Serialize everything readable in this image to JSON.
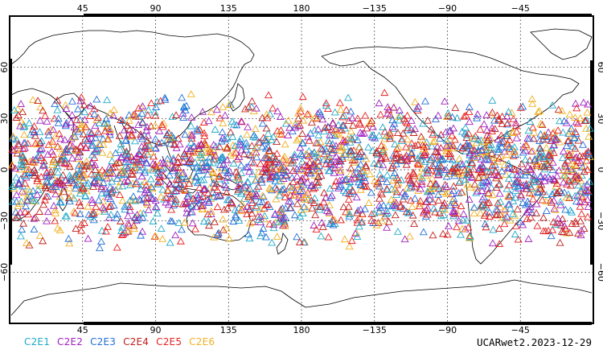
{
  "map": {
    "lon_ticks_top": [
      "45",
      "90",
      "135",
      "180",
      "−135",
      "−90",
      "−45"
    ],
    "lon_ticks_bottom": [
      "45",
      "90",
      "135",
      "180",
      "−135",
      "−90",
      "−45"
    ],
    "lat_ticks_left": [
      "60",
      "30",
      "0",
      "−30",
      "−60"
    ],
    "lat_ticks_right": [
      "60",
      "30",
      "0",
      "−30",
      "−60"
    ],
    "gridlines": true,
    "projection": "equirectangular, Pacific-centered",
    "marker": "open triangle",
    "observation_band_latitude": [
      -45,
      45
    ]
  },
  "legend": {
    "items": [
      {
        "label": "C2E1",
        "color": "#20a9c9"
      },
      {
        "label": "C2E2",
        "color": "#a020c0"
      },
      {
        "label": "C2E3",
        "color": "#1f6fd6"
      },
      {
        "label": "C2E4",
        "color": "#c0201e"
      },
      {
        "label": "C2E5",
        "color": "#e81f1f"
      },
      {
        "label": "C2E6",
        "color": "#f0b020"
      }
    ]
  },
  "footer": {
    "label": "UCARwet2.2023-12-29"
  },
  "colors": {
    "coastline": "#000000",
    "grid": "#000000",
    "frame": "#000000"
  }
}
